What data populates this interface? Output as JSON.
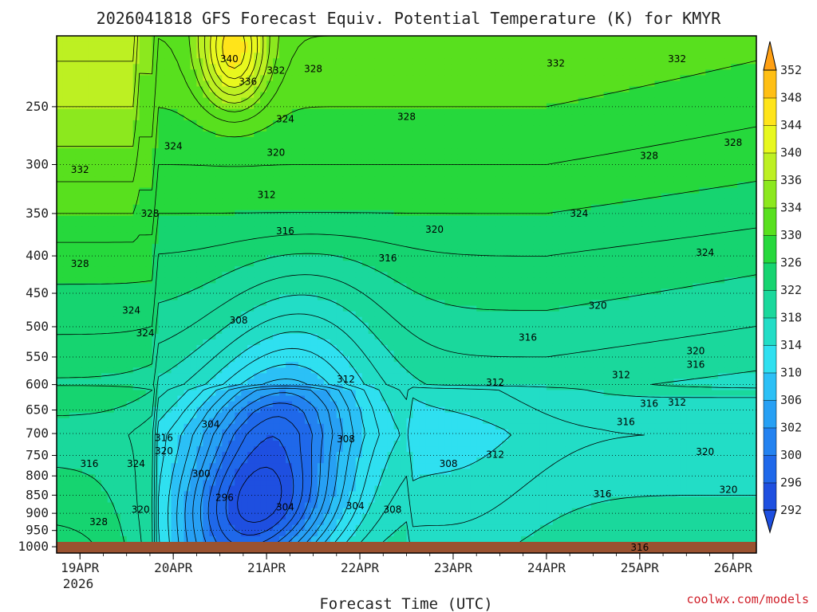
{
  "title": "2026041818 GFS Forecast Equiv. Potential Temperature (K) for KMYR",
  "xlabel": "Forecast Time (UTC)",
  "credit": "coolwx.com/models",
  "chart_data": {
    "type": "heatmap",
    "title": "2026041818 GFS Forecast Equiv. Potential Temperature (K) for KMYR",
    "xlabel": "Forecast Time (UTC)",
    "ylabel": "",
    "y_scale": "log",
    "y_inverted": true,
    "ylim": [
      1020,
      200
    ],
    "y_ticks": [
      250,
      300,
      350,
      400,
      450,
      500,
      550,
      600,
      650,
      700,
      750,
      800,
      850,
      900,
      950,
      1000
    ],
    "x_ticks": [
      "19APR",
      "20APR",
      "21APR",
      "22APR",
      "23APR",
      "24APR",
      "25APR",
      "26APR"
    ],
    "x_year_label": "2026",
    "xlim_days": [
      18.75,
      26.25
    ],
    "colorbar": {
      "levels": [
        292,
        296,
        300,
        302,
        306,
        310,
        314,
        318,
        322,
        326,
        330,
        334,
        336,
        340,
        344,
        348,
        352
      ],
      "colors": [
        "#1e4fe0",
        "#1f68ea",
        "#2382f0",
        "#27a0f4",
        "#2bc0f6",
        "#2fe0f0",
        "#22ddc6",
        "#1ad89c",
        "#16d470",
        "#26d83c",
        "#58e01e",
        "#8ce81e",
        "#bdf022",
        "#e8f81e",
        "#ffe41a",
        "#ffbf14",
        "#ffa014"
      ]
    },
    "contour_labels": [
      {
        "value": "340",
        "day": 20.6,
        "p": 215
      },
      {
        "value": "336",
        "day": 20.8,
        "p": 231
      },
      {
        "value": "332",
        "day": 21.1,
        "p": 223
      },
      {
        "value": "328",
        "day": 21.5,
        "p": 222
      },
      {
        "value": "332",
        "day": 24.1,
        "p": 218
      },
      {
        "value": "332",
        "day": 25.4,
        "p": 215
      },
      {
        "value": "324",
        "day": 21.2,
        "p": 260
      },
      {
        "value": "328",
        "day": 22.5,
        "p": 258
      },
      {
        "value": "332",
        "day": 19.0,
        "p": 305
      },
      {
        "value": "324",
        "day": 20.0,
        "p": 283
      },
      {
        "value": "320",
        "day": 21.1,
        "p": 289
      },
      {
        "value": "328",
        "day": 25.1,
        "p": 292
      },
      {
        "value": "328",
        "day": 26.0,
        "p": 280
      },
      {
        "value": "312",
        "day": 21.0,
        "p": 330
      },
      {
        "value": "328",
        "day": 19.75,
        "p": 350
      },
      {
        "value": "316",
        "day": 21.2,
        "p": 370
      },
      {
        "value": "320",
        "day": 22.8,
        "p": 368
      },
      {
        "value": "324",
        "day": 24.35,
        "p": 350
      },
      {
        "value": "328",
        "day": 19.0,
        "p": 410
      },
      {
        "value": "316",
        "day": 22.3,
        "p": 403
      },
      {
        "value": "324",
        "day": 25.7,
        "p": 396
      },
      {
        "value": "324",
        "day": 19.55,
        "p": 475
      },
      {
        "value": "308",
        "day": 20.7,
        "p": 490
      },
      {
        "value": "320",
        "day": 24.55,
        "p": 468
      },
      {
        "value": "324",
        "day": 19.7,
        "p": 510
      },
      {
        "value": "316",
        "day": 23.8,
        "p": 517
      },
      {
        "value": "320",
        "day": 25.6,
        "p": 540
      },
      {
        "value": "316",
        "day": 25.6,
        "p": 563
      },
      {
        "value": "312",
        "day": 21.85,
        "p": 590
      },
      {
        "value": "312",
        "day": 23.45,
        "p": 596
      },
      {
        "value": "312",
        "day": 24.8,
        "p": 582
      },
      {
        "value": "316",
        "day": 25.1,
        "p": 637
      },
      {
        "value": "312",
        "day": 25.4,
        "p": 635
      },
      {
        "value": "304",
        "day": 20.4,
        "p": 680
      },
      {
        "value": "316",
        "day": 19.9,
        "p": 710
      },
      {
        "value": "308",
        "day": 21.85,
        "p": 712
      },
      {
        "value": "316",
        "day": 24.85,
        "p": 675
      },
      {
        "value": "320",
        "day": 19.9,
        "p": 740
      },
      {
        "value": "312",
        "day": 23.45,
        "p": 748
      },
      {
        "value": "320",
        "day": 25.7,
        "p": 742
      },
      {
        "value": "316",
        "day": 19.1,
        "p": 770
      },
      {
        "value": "324",
        "day": 19.6,
        "p": 770
      },
      {
        "value": "308",
        "day": 22.95,
        "p": 770
      },
      {
        "value": "300",
        "day": 20.3,
        "p": 795
      },
      {
        "value": "316",
        "day": 24.6,
        "p": 847
      },
      {
        "value": "320",
        "day": 25.95,
        "p": 835
      },
      {
        "value": "296",
        "day": 20.55,
        "p": 857
      },
      {
        "value": "304",
        "day": 21.2,
        "p": 883
      },
      {
        "value": "304",
        "day": 21.95,
        "p": 880
      },
      {
        "value": "308",
        "day": 22.35,
        "p": 890
      },
      {
        "value": "320",
        "day": 19.65,
        "p": 890
      },
      {
        "value": "328",
        "day": 19.2,
        "p": 925
      },
      {
        "value": "316",
        "day": 25.0,
        "p": 1002
      }
    ]
  }
}
